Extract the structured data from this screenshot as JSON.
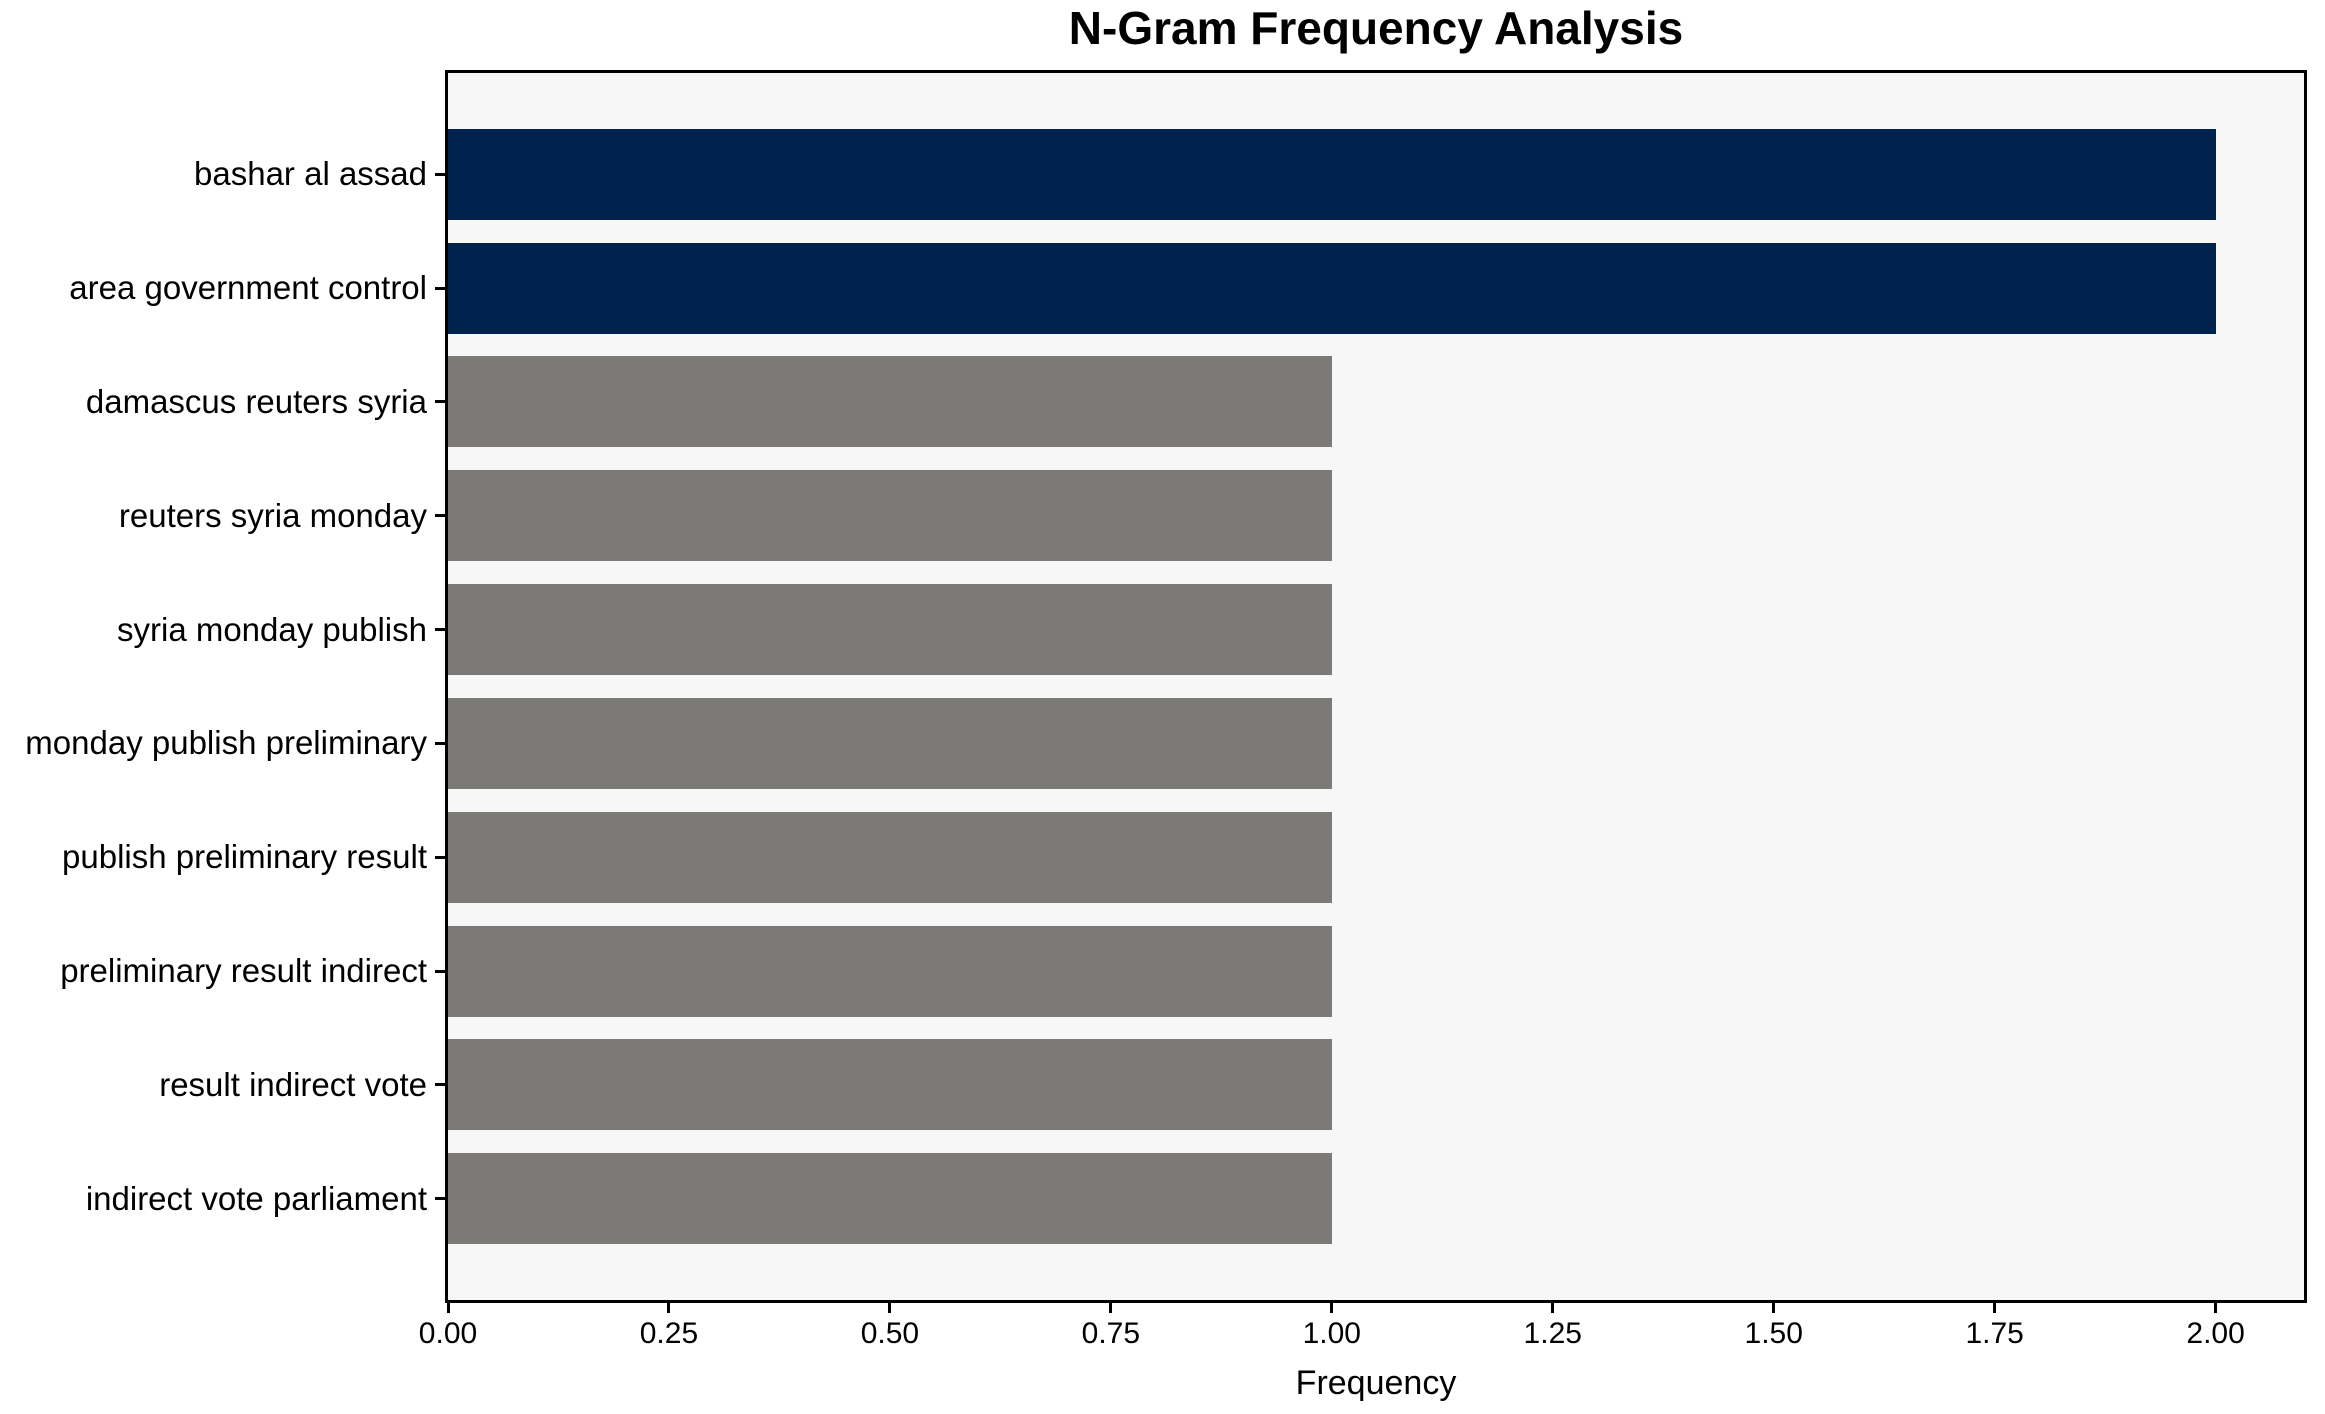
{
  "chart_data": {
    "type": "bar",
    "orientation": "horizontal",
    "title": "N-Gram Frequency Analysis",
    "xlabel": "Frequency",
    "ylabel": "",
    "categories": [
      "bashar al assad",
      "area government control",
      "damascus reuters syria",
      "reuters syria monday",
      "syria monday publish",
      "monday publish preliminary",
      "publish preliminary result",
      "preliminary result indirect",
      "result indirect vote",
      "indirect vote parliament"
    ],
    "values": [
      2,
      2,
      1,
      1,
      1,
      1,
      1,
      1,
      1,
      1
    ],
    "bar_colors": [
      "#00234E",
      "#00234E",
      "#7B7A77",
      "#7B7A77",
      "#7B7A77",
      "#7B7A77",
      "#7B7A77",
      "#7B7A77",
      "#7B7A77",
      "#7B7A77"
    ],
    "highlight_color": "#00234E",
    "default_color": "#7B7A77",
    "plot_background": "#F8F7F7",
    "page_background": "#FFFFFF",
    "xlim": [
      0,
      2.1
    ],
    "xticks": [
      0,
      0.25,
      0.5,
      0.75,
      1,
      1.25,
      1.5,
      1.75,
      2
    ],
    "xtick_labels": [
      "0.00",
      "0.25",
      "0.50",
      "0.75",
      "1.00",
      "1.25",
      "1.50",
      "1.75",
      "2.00"
    ],
    "grid": false,
    "legend": null,
    "bar_height_fraction": 0.8
  }
}
